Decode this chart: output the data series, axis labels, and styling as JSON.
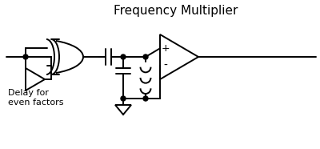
{
  "title": "Frequency Multiplier",
  "title_fontsize": 11,
  "bg_color": "#ffffff",
  "line_color": "black",
  "lw": 1.4,
  "label_delay": "Delay for\neven factors",
  "label_plus": "+",
  "label_minus": "-"
}
